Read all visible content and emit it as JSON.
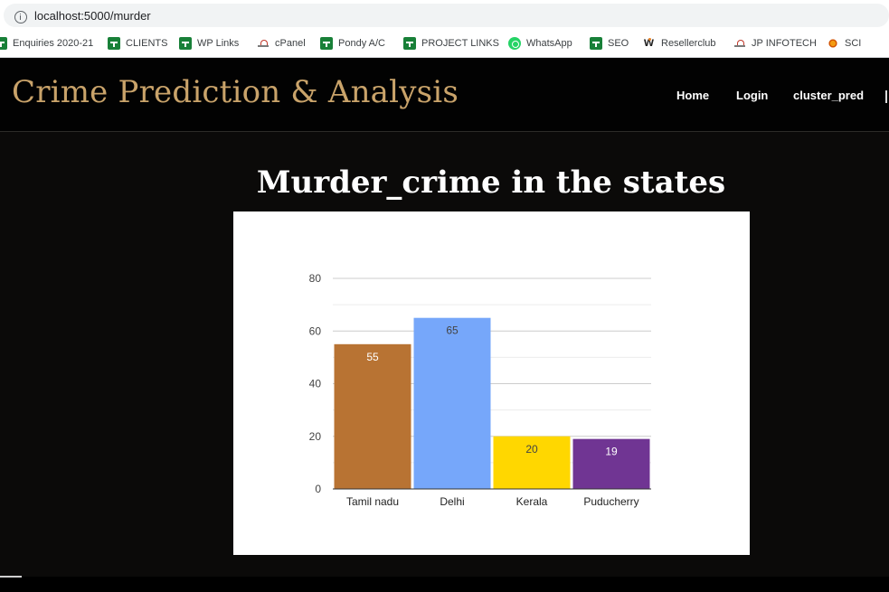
{
  "browser": {
    "url": "localhost:5000/murder",
    "bookmarks": [
      {
        "label": "Enquiries 2020-21",
        "icon": "sheets-icon"
      },
      {
        "label": "CLIENTS",
        "icon": "sheets-icon"
      },
      {
        "label": "WP Links",
        "icon": "sheets-icon"
      },
      {
        "label": "cPanel",
        "icon": "cpanel-icon"
      },
      {
        "label": "Pondy A/C",
        "icon": "sheets-icon"
      },
      {
        "label": "PROJECT LINKS",
        "icon": "sheets-icon"
      },
      {
        "label": "WhatsApp",
        "icon": "whatsapp-icon"
      },
      {
        "label": "SEO",
        "icon": "sheets-icon"
      },
      {
        "label": "Resellerclub",
        "icon": "resellerclub-icon"
      },
      {
        "label": "JP INFOTECH",
        "icon": "cpanel-icon"
      },
      {
        "label": "SCI",
        "icon": "sci-icon"
      }
    ]
  },
  "header": {
    "brand": "Crime Prediction & Analysis",
    "nav": [
      "Home",
      "Login",
      "cluster_pred"
    ]
  },
  "main": {
    "title": "Murder_crime in the states"
  },
  "chart_data": {
    "type": "bar",
    "categories": [
      "Tamil nadu",
      "Delhi",
      "Kerala",
      "Puducherry"
    ],
    "values": [
      55,
      65,
      20,
      19
    ],
    "colors": [
      "#b87333",
      "#76a7fa",
      "#ffd700",
      "#703593"
    ],
    "label_colors": [
      "#ffffff",
      "#444444",
      "#444444",
      "#ffffff"
    ],
    "ylim": [
      0,
      80
    ],
    "yticks": [
      0,
      20,
      40,
      60,
      80
    ],
    "grid": true,
    "legend": "none"
  }
}
